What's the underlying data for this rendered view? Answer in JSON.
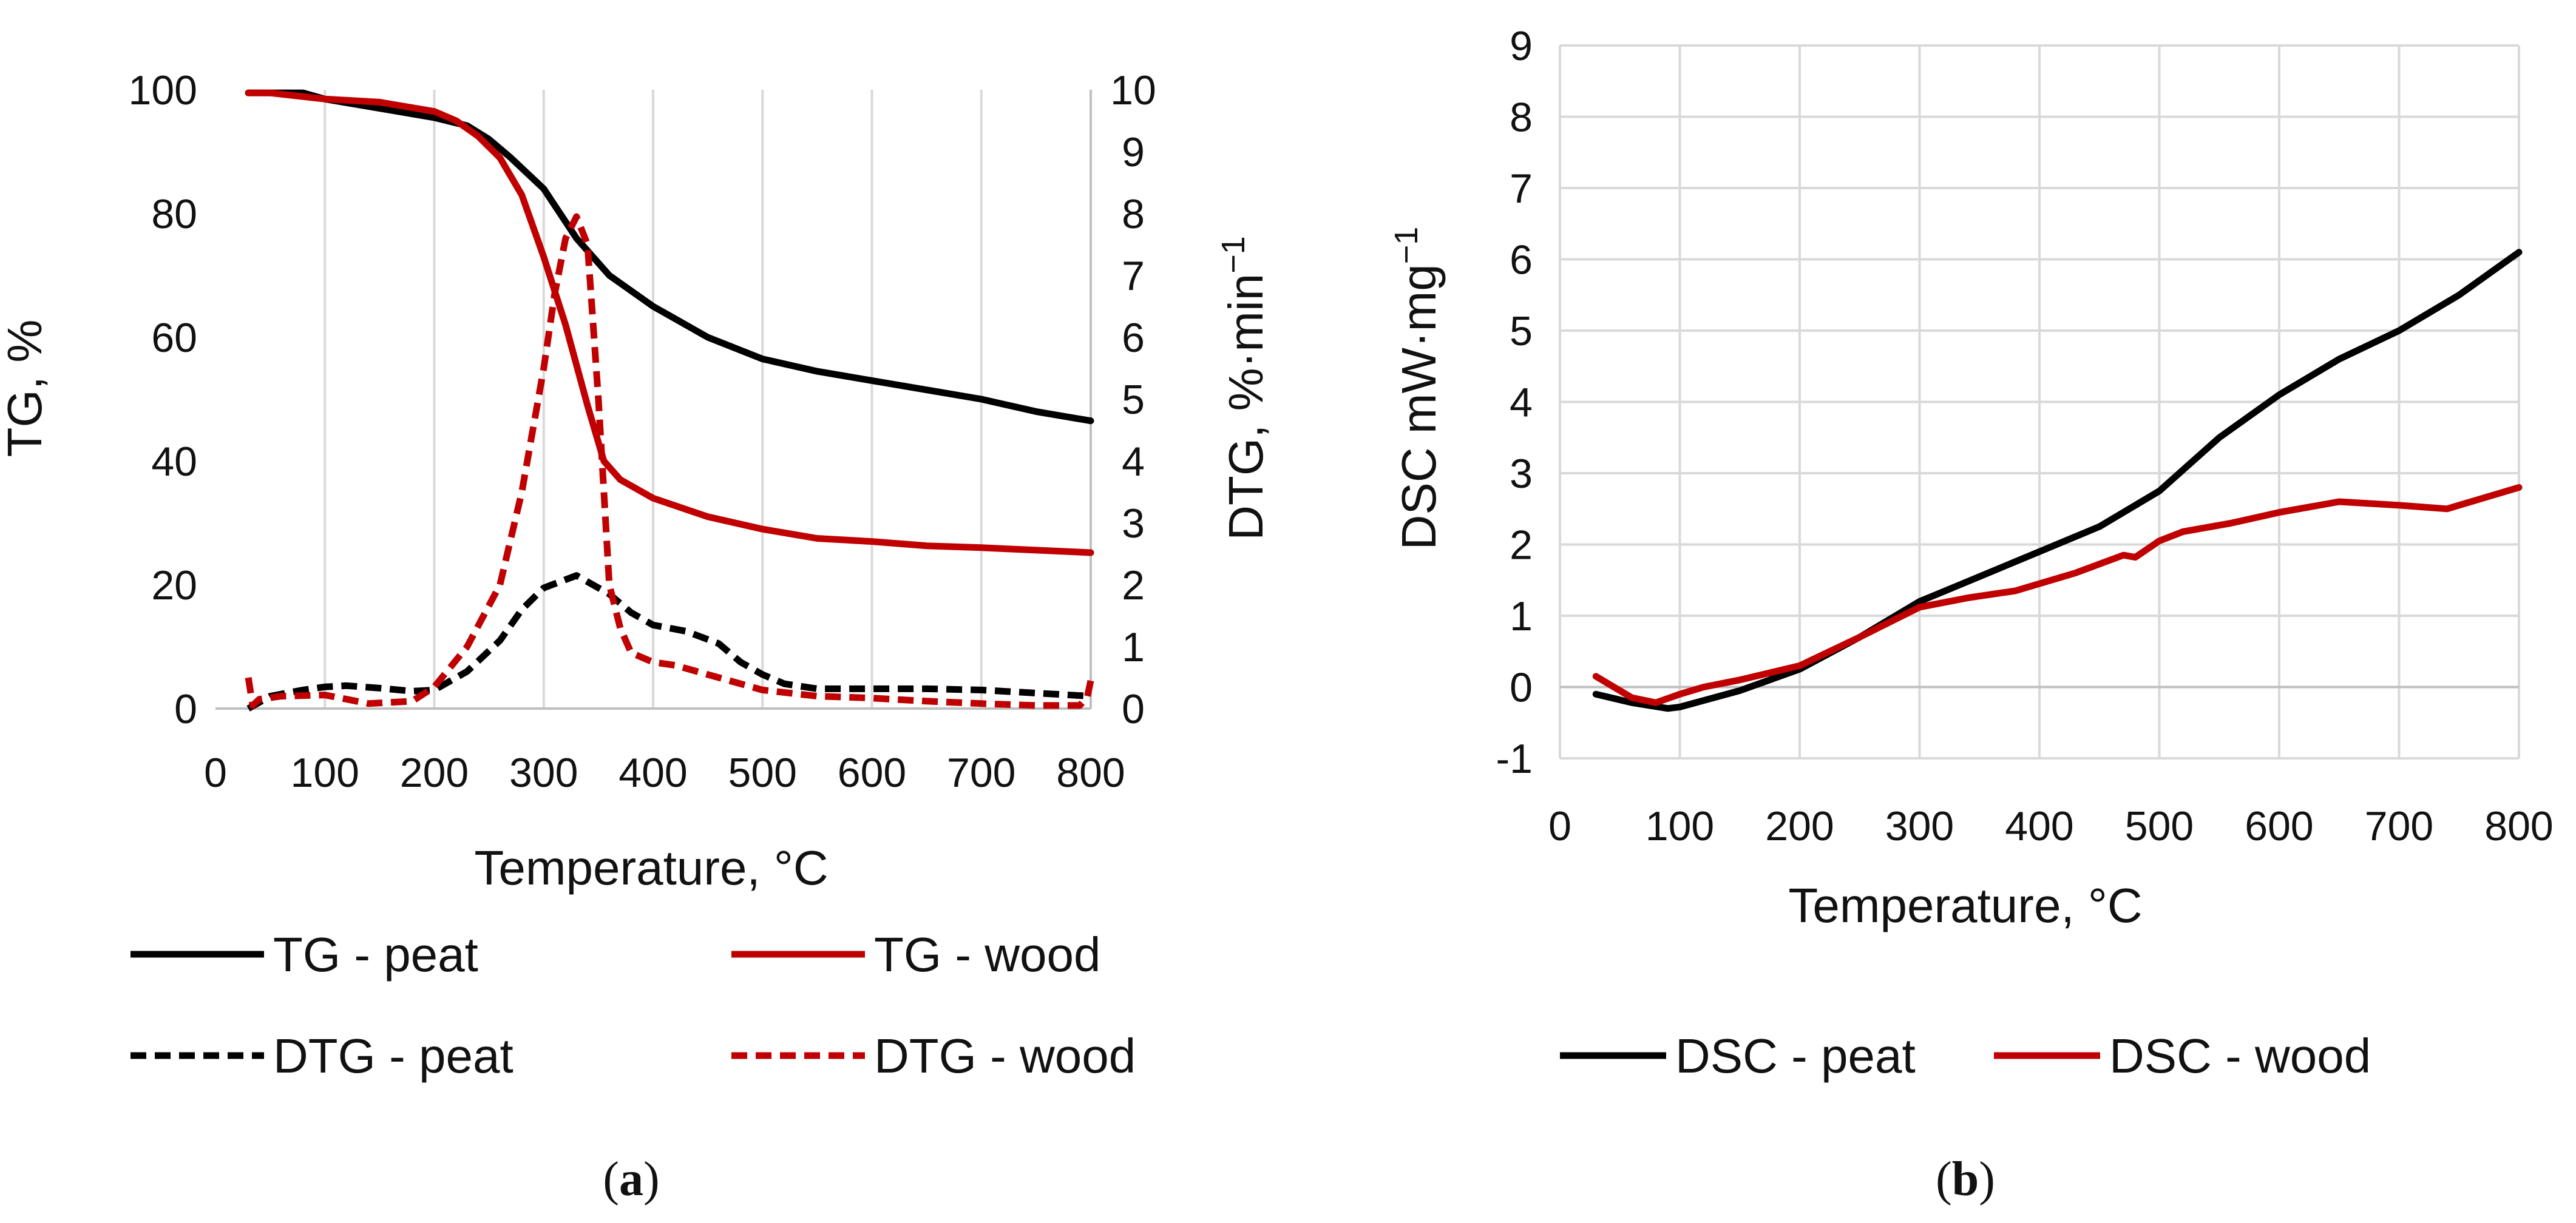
{
  "chart_data": [
    {
      "type": "line",
      "panel": "a",
      "caption_letter": "a",
      "xlabel": "Temperature, °C",
      "ylabel": "TG, %",
      "y2label": "DTG, %·min",
      "y2label_sup": "−1",
      "xlim": [
        0,
        800
      ],
      "ylim": [
        0,
        100
      ],
      "y2lim": [
        0,
        10
      ],
      "x_ticks": [
        "0",
        "100",
        "200",
        "300",
        "400",
        "500",
        "600",
        "700",
        "800"
      ],
      "y_ticks": [
        "0",
        "20",
        "40",
        "60",
        "80",
        "100"
      ],
      "y2_ticks": [
        "0",
        "1",
        "2",
        "3",
        "4",
        "5",
        "6",
        "7",
        "8",
        "9",
        "10"
      ],
      "grid": "vertical",
      "legend_position": "bottom",
      "series": [
        {
          "name": "TG - peat",
          "axis": "left",
          "color": "#000000",
          "dash": "solid",
          "x": [
            30,
            50,
            80,
            100,
            150,
            200,
            230,
            250,
            270,
            300,
            330,
            360,
            400,
            450,
            500,
            550,
            600,
            650,
            700,
            750,
            800
          ],
          "y": [
            99.5,
            99.5,
            99.5,
            98.5,
            97,
            95.5,
            94.2,
            92,
            89,
            84,
            76,
            70,
            65,
            60,
            56.5,
            54.5,
            53,
            51.5,
            50,
            48,
            46.5
          ]
        },
        {
          "name": "TG - wood",
          "axis": "left",
          "color": "#c00000",
          "dash": "solid",
          "x": [
            30,
            50,
            100,
            150,
            200,
            220,
            240,
            260,
            280,
            300,
            320,
            340,
            355,
            370,
            400,
            450,
            500,
            550,
            600,
            650,
            700,
            750,
            800
          ],
          "y": [
            99.5,
            99.5,
            98.5,
            98,
            96.5,
            95,
            92.5,
            89,
            83,
            73,
            62,
            49,
            40,
            37,
            34,
            31,
            29,
            27.5,
            27,
            26.3,
            26,
            25.6,
            25.2
          ]
        },
        {
          "name": "DTG - peat",
          "axis": "right",
          "color": "#000000",
          "dash": "dashed",
          "x": [
            30,
            50,
            80,
            100,
            120,
            150,
            180,
            200,
            230,
            260,
            280,
            300,
            330,
            360,
            380,
            400,
            430,
            460,
            480,
            500,
            520,
            550,
            600,
            650,
            700,
            750,
            800
          ],
          "y": [
            0.0,
            0.2,
            0.3,
            0.35,
            0.37,
            0.33,
            0.28,
            0.3,
            0.6,
            1.1,
            1.6,
            1.95,
            2.15,
            1.85,
            1.55,
            1.35,
            1.25,
            1.05,
            0.75,
            0.55,
            0.4,
            0.32,
            0.32,
            0.32,
            0.3,
            0.25,
            0.2
          ]
        },
        {
          "name": "DTG - wood",
          "axis": "right",
          "color": "#c00000",
          "dash": "dashed",
          "x": [
            30,
            34,
            40,
            60,
            100,
            140,
            180,
            200,
            230,
            260,
            280,
            300,
            310,
            320,
            330,
            340,
            350,
            360,
            370,
            380,
            400,
            420,
            450,
            500,
            550,
            600,
            650,
            700,
            750,
            790,
            797,
            800
          ],
          "y": [
            0.5,
            0.05,
            0.15,
            0.2,
            0.22,
            0.08,
            0.12,
            0.35,
            1.0,
            2.0,
            3.5,
            5.5,
            6.7,
            7.6,
            7.95,
            7.5,
            5.0,
            2.0,
            1.3,
            0.9,
            0.75,
            0.7,
            0.55,
            0.3,
            0.2,
            0.17,
            0.12,
            0.08,
            0.05,
            0.05,
            0.2,
            0.45
          ]
        }
      ]
    },
    {
      "type": "line",
      "panel": "b",
      "caption_letter": "b",
      "xlabel": "Temperature, °C",
      "ylabel": "DSC mW·mg",
      "ylabel_sup": "−1",
      "xlim": [
        0,
        800
      ],
      "ylim": [
        -1,
        9
      ],
      "x_ticks": [
        "0",
        "100",
        "200",
        "300",
        "400",
        "500",
        "600",
        "700",
        "800"
      ],
      "y_ticks": [
        "-1",
        "0",
        "1",
        "2",
        "3",
        "4",
        "5",
        "6",
        "7",
        "8",
        "9"
      ],
      "grid": "both",
      "legend_position": "bottom",
      "series": [
        {
          "name": "DSC - peat",
          "color": "#000000",
          "dash": "solid",
          "x": [
            30,
            60,
            90,
            100,
            150,
            200,
            250,
            300,
            350,
            400,
            450,
            500,
            550,
            600,
            650,
            700,
            750,
            800
          ],
          "y": [
            -0.1,
            -0.22,
            -0.3,
            -0.28,
            -0.05,
            0.25,
            0.7,
            1.2,
            1.55,
            1.9,
            2.25,
            2.75,
            3.5,
            4.1,
            4.6,
            5.0,
            5.5,
            6.1
          ]
        },
        {
          "name": "DSC - wood",
          "color": "#c00000",
          "dash": "solid",
          "x": [
            30,
            45,
            60,
            80,
            100,
            120,
            150,
            200,
            250,
            300,
            340,
            380,
            430,
            470,
            480,
            500,
            520,
            560,
            600,
            650,
            700,
            740,
            770,
            800
          ],
          "y": [
            0.15,
            0.0,
            -0.15,
            -0.22,
            -0.1,
            0.0,
            0.1,
            0.3,
            0.7,
            1.12,
            1.25,
            1.35,
            1.6,
            1.85,
            1.82,
            2.05,
            2.18,
            2.3,
            2.45,
            2.6,
            2.55,
            2.5,
            2.65,
            2.8
          ]
        }
      ]
    }
  ]
}
